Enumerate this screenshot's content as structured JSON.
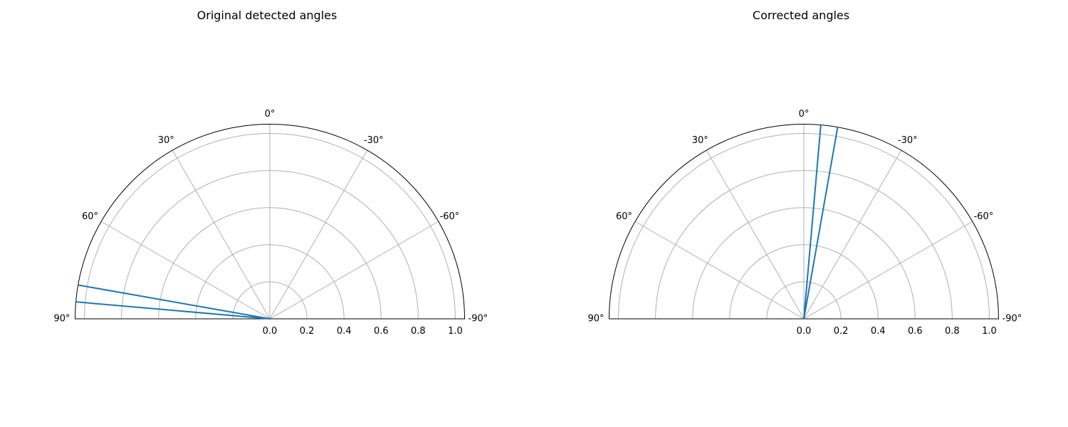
{
  "chart_data": [
    {
      "type": "polar-line",
      "title": "Original detected angles",
      "angle_range_deg": [
        90,
        -90
      ],
      "angle_ticks": [
        90,
        60,
        30,
        0,
        -30,
        -60,
        -90
      ],
      "angle_tick_labels": [
        "90°",
        "60°",
        "30°",
        "0°",
        "-30°",
        "-60°",
        "-90°"
      ],
      "rlim": [
        0,
        1.05
      ],
      "r_ticks": [
        0.0,
        0.2,
        0.4,
        0.6,
        0.8,
        1.0
      ],
      "r_tick_labels": [
        "0.0",
        "0.2",
        "0.4",
        "0.6",
        "0.8",
        "1.0"
      ],
      "grid": true,
      "series": [
        {
          "angles_deg": [
            85,
            80
          ],
          "r": [
            1.05,
            1.05
          ]
        }
      ]
    },
    {
      "type": "polar-line",
      "title": "Corrected angles",
      "angle_range_deg": [
        90,
        -90
      ],
      "angle_ticks": [
        90,
        60,
        30,
        0,
        -30,
        -60,
        -90
      ],
      "angle_tick_labels": [
        "90°",
        "60°",
        "30°",
        "0°",
        "-30°",
        "-60°",
        "-90°"
      ],
      "rlim": [
        0,
        1.05
      ],
      "r_ticks": [
        0.0,
        0.2,
        0.4,
        0.6,
        0.8,
        1.0
      ],
      "r_tick_labels": [
        "0.0",
        "0.2",
        "0.4",
        "0.6",
        "0.8",
        "1.0"
      ],
      "grid": true,
      "series": [
        {
          "angles_deg": [
            -5,
            -10
          ],
          "r": [
            1.05,
            1.05
          ]
        }
      ]
    }
  ],
  "colors": {
    "line": "#1f77b4",
    "grid": "#b0b0b0",
    "spine": "#000000"
  }
}
